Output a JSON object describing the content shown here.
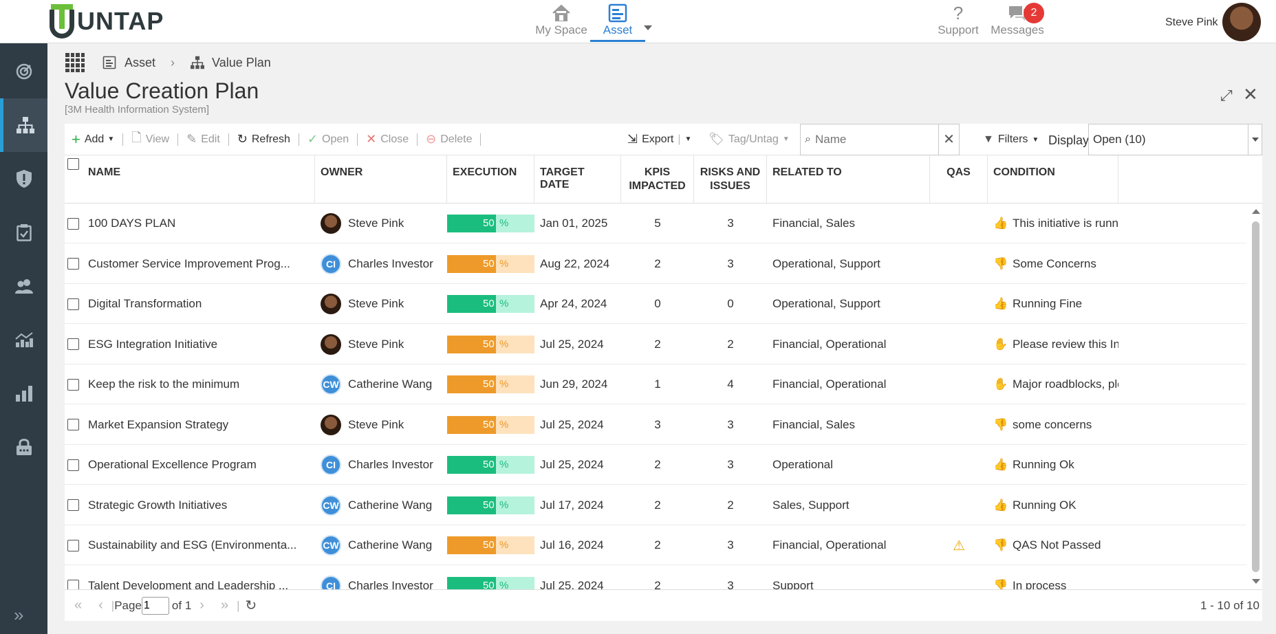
{
  "header": {
    "logo_text": "UNTAP",
    "nav": [
      {
        "label": "My Space",
        "icon": "home-icon"
      },
      {
        "label": "Asset",
        "icon": "asset-icon"
      },
      {
        "label": "Support",
        "icon": "help-icon"
      },
      {
        "label": "Messages",
        "icon": "chat-icon",
        "badge": "2"
      }
    ],
    "user_name": "Steve Pink"
  },
  "sidebar": {
    "items": [
      "target-icon",
      "hierarchy-icon",
      "shield-icon",
      "clipboard-icon",
      "users-icon",
      "chart-up-icon",
      "bar-chart-icon",
      "lock-icon"
    ],
    "active_index": 1
  },
  "breadcrumb": [
    "Asset",
    "Value Plan"
  ],
  "page": {
    "title": "Value Creation Plan",
    "subtitle": "[3M Health Information System]"
  },
  "toolbar": {
    "add": "Add",
    "view": "View",
    "edit": "Edit",
    "refresh": "Refresh",
    "open": "Open",
    "close": "Close",
    "delete": "Delete",
    "export": "Export",
    "tag": "Tag/Untag",
    "search_placeholder": "Name",
    "filters": "Filters",
    "display_label": "Display",
    "display_value": "Open (10)"
  },
  "columns": {
    "name": "NAME",
    "owner": "OWNER",
    "execution": "EXECUTION",
    "target_date": "TARGET DATE",
    "kpis_line1": "KPIS",
    "kpis_line2": "IMPACTED",
    "risks_line1": "RISKS AND",
    "risks_line2": "ISSUES",
    "related": "RELATED TO",
    "qas": "QAS",
    "condition": "CONDITION"
  },
  "rows": [
    {
      "name": "100 DAYS PLAN",
      "owner": "Steve Pink",
      "owner_type": "photo",
      "initials": "",
      "exec": "50",
      "pct": "%",
      "exec_color": "green",
      "date": "Jan 01, 2025",
      "kpis": "5",
      "risks": "3",
      "related": "Financial, Sales",
      "qas": "",
      "cond_icon": "thumbs-up",
      "condition": "This initiative is running"
    },
    {
      "name": "Customer Service Improvement Prog...",
      "owner": "Charles Investor",
      "owner_type": "initials",
      "initials": "CI",
      "exec": "50",
      "pct": "%",
      "exec_color": "orange",
      "date": "Aug 22, 2024",
      "kpis": "2",
      "risks": "3",
      "related": "Operational, Support",
      "qas": "",
      "cond_icon": "thumbs-down",
      "condition": "Some Concerns"
    },
    {
      "name": "Digital Transformation",
      "owner": "Steve Pink",
      "owner_type": "photo",
      "initials": "",
      "exec": "50",
      "pct": "%",
      "exec_color": "green",
      "date": "Apr 24, 2024",
      "kpis": "0",
      "risks": "0",
      "related": "Operational, Support",
      "qas": "",
      "cond_icon": "thumbs-up",
      "condition": "Running Fine"
    },
    {
      "name": "ESG Integration Initiative",
      "owner": "Steve Pink",
      "owner_type": "photo",
      "initials": "",
      "exec": "50",
      "pct": "%",
      "exec_color": "orange",
      "date": "Jul 25, 2024",
      "kpis": "2",
      "risks": "2",
      "related": "Financial, Operational",
      "qas": "",
      "cond_icon": "stop-hand",
      "condition": "Please review this Initiati"
    },
    {
      "name": "Keep the risk to the minimum",
      "owner": "Catherine Wang",
      "owner_type": "initials",
      "initials": "CW",
      "exec": "50",
      "pct": "%",
      "exec_color": "orange",
      "date": "Jun 29, 2024",
      "kpis": "1",
      "risks": "4",
      "related": "Financial, Operational",
      "qas": "",
      "cond_icon": "stop-hand",
      "condition": "Major roadblocks, please"
    },
    {
      "name": "Market Expansion Strategy",
      "owner": "Steve Pink",
      "owner_type": "photo",
      "initials": "",
      "exec": "50",
      "pct": "%",
      "exec_color": "orange",
      "date": "Jul 25, 2024",
      "kpis": "3",
      "risks": "3",
      "related": "Financial, Sales",
      "qas": "",
      "cond_icon": "thumbs-down",
      "condition": "some concerns"
    },
    {
      "name": "Operational Excellence Program",
      "owner": "Charles Investor",
      "owner_type": "initials",
      "initials": "CI",
      "exec": "50",
      "pct": "%",
      "exec_color": "green",
      "date": "Jul 25, 2024",
      "kpis": "2",
      "risks": "3",
      "related": "Operational",
      "qas": "",
      "cond_icon": "thumbs-up",
      "condition": "Running Ok"
    },
    {
      "name": "Strategic Growth Initiatives",
      "owner": "Catherine Wang",
      "owner_type": "initials",
      "initials": "CW",
      "exec": "50",
      "pct": "%",
      "exec_color": "green",
      "date": "Jul 17, 2024",
      "kpis": "2",
      "risks": "2",
      "related": "Sales, Support",
      "qas": "",
      "cond_icon": "thumbs-up",
      "condition": "Running OK"
    },
    {
      "name": "Sustainability and ESG (Environmenta...",
      "owner": "Catherine Wang",
      "owner_type": "initials",
      "initials": "CW",
      "exec": "50",
      "pct": "%",
      "exec_color": "orange",
      "date": "Jul 16, 2024",
      "kpis": "2",
      "risks": "3",
      "related": "Financial, Operational",
      "qas": "warning",
      "cond_icon": "thumbs-down",
      "condition": "QAS Not Passed"
    },
    {
      "name": "Talent Development and Leadership ...",
      "owner": "Charles Investor",
      "owner_type": "initials",
      "initials": "CI",
      "exec": "50",
      "pct": "%",
      "exec_color": "green",
      "date": "Jul 25, 2024",
      "kpis": "2",
      "risks": "3",
      "related": "Support",
      "qas": "",
      "cond_icon": "thumbs-down",
      "condition": "In process"
    }
  ],
  "pager": {
    "page_label": "Page",
    "page_value": "1",
    "of_label": "of 1",
    "range": "1 - 10 of 10"
  }
}
